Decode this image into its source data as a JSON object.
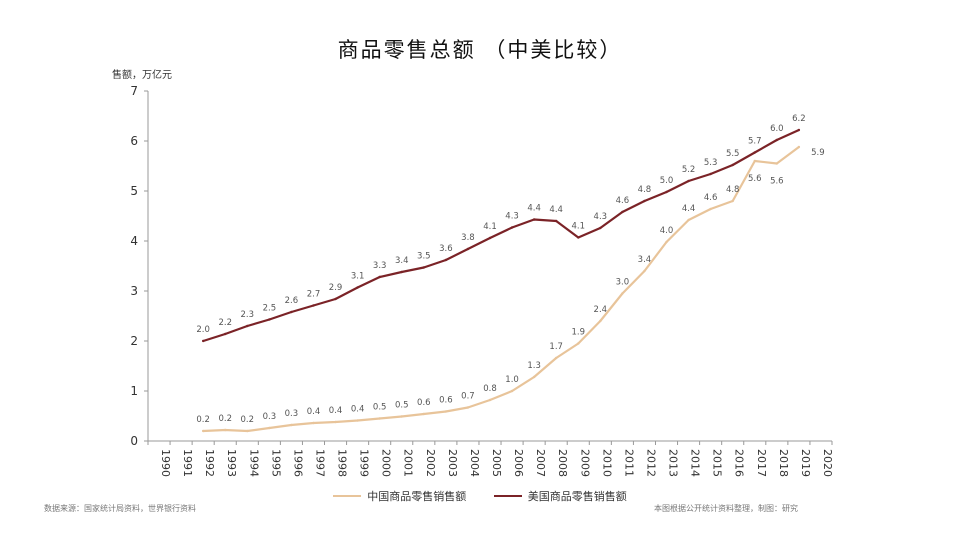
{
  "chart_data": {
    "type": "line",
    "title": "商品零售总额 （中美比较）",
    "ylabel": "售额，万亿元",
    "xlabel": "",
    "ylim": [
      0,
      7
    ],
    "yticks": [
      0,
      1,
      2,
      3,
      4,
      5,
      6,
      7
    ],
    "x": [
      "1990",
      "1991",
      "1992",
      "1993",
      "1994",
      "1995",
      "1996",
      "1997",
      "1998",
      "1999",
      "2000",
      "2001",
      "2002",
      "2003",
      "2004",
      "2005",
      "2006",
      "2007",
      "2008",
      "2009",
      "2010",
      "2011",
      "2012",
      "2013",
      "2014",
      "2015",
      "2016",
      "2017",
      "2018",
      "2019",
      "2020"
    ],
    "series": [
      {
        "name": "中国商品零售销售额",
        "color": "#e8c49a",
        "values": [
          null,
          null,
          0.2,
          0.2,
          0.2,
          0.3,
          0.3,
          0.4,
          0.4,
          0.4,
          0.5,
          0.5,
          0.6,
          0.6,
          0.7,
          0.8,
          1.0,
          1.3,
          1.7,
          1.9,
          2.4,
          3.0,
          3.4,
          4.0,
          4.4,
          4.6,
          4.8,
          5.6,
          5.6,
          5.9,
          null
        ],
        "labels": [
          "",
          "",
          "0.2",
          "0.2",
          "0.2",
          "0.3",
          "0.3",
          "0.4",
          "0.4",
          "0.4",
          "0.5",
          "0.5",
          "0.6",
          "0.6",
          "0.7",
          "0.8",
          "1.0",
          "1.3",
          "1.7",
          "1.9",
          "2.4",
          "3.0",
          "3.4",
          "4.0",
          "4.4",
          "4.6",
          "4.8",
          "5.6",
          "5.6",
          "5.9",
          ""
        ],
        "plot": [
          null,
          null,
          0.2,
          0.22,
          0.2,
          0.26,
          0.32,
          0.36,
          0.38,
          0.41,
          0.45,
          0.49,
          0.54,
          0.59,
          0.67,
          0.82,
          1.0,
          1.28,
          1.66,
          1.95,
          2.4,
          2.95,
          3.4,
          3.98,
          4.42,
          4.64,
          4.8,
          5.6,
          5.55,
          5.88,
          null
        ]
      },
      {
        "name": "美国商品零售销售额",
        "color": "#7b2327",
        "values": [
          null,
          null,
          2.0,
          2.2,
          2.3,
          2.5,
          2.6,
          2.7,
          2.9,
          3.1,
          3.3,
          3.4,
          3.5,
          3.6,
          3.8,
          4.1,
          4.3,
          4.4,
          4.4,
          4.1,
          4.3,
          4.6,
          4.8,
          5.0,
          5.2,
          5.3,
          5.5,
          5.7,
          6.0,
          6.2,
          null
        ],
        "labels": [
          "",
          "",
          "2.0",
          "2.2",
          "2.3",
          "2.5",
          "2.6",
          "2.7",
          "2.9",
          "3.1",
          "3.3",
          "3.4",
          "3.5",
          "3.6",
          "3.8",
          "4.1",
          "4.3",
          "4.4",
          "4.4",
          "4.1",
          "4.3",
          "4.6",
          "4.8",
          "5.0",
          "5.2",
          "5.3",
          "5.5",
          "5.7",
          "6.0",
          "6.2",
          ""
        ],
        "plot": [
          null,
          null,
          2.0,
          2.14,
          2.3,
          2.43,
          2.58,
          2.71,
          2.84,
          3.07,
          3.28,
          3.38,
          3.47,
          3.62,
          3.84,
          4.06,
          4.27,
          4.43,
          4.4,
          4.07,
          4.26,
          4.58,
          4.8,
          4.98,
          5.2,
          5.34,
          5.52,
          5.77,
          6.02,
          6.22,
          null
        ]
      }
    ],
    "legend": "bottom-center"
  },
  "source_note": "数据来源：国家统计局资料，世界银行资料",
  "right_note": "本图根据公开统计资料整理，制图：研究"
}
